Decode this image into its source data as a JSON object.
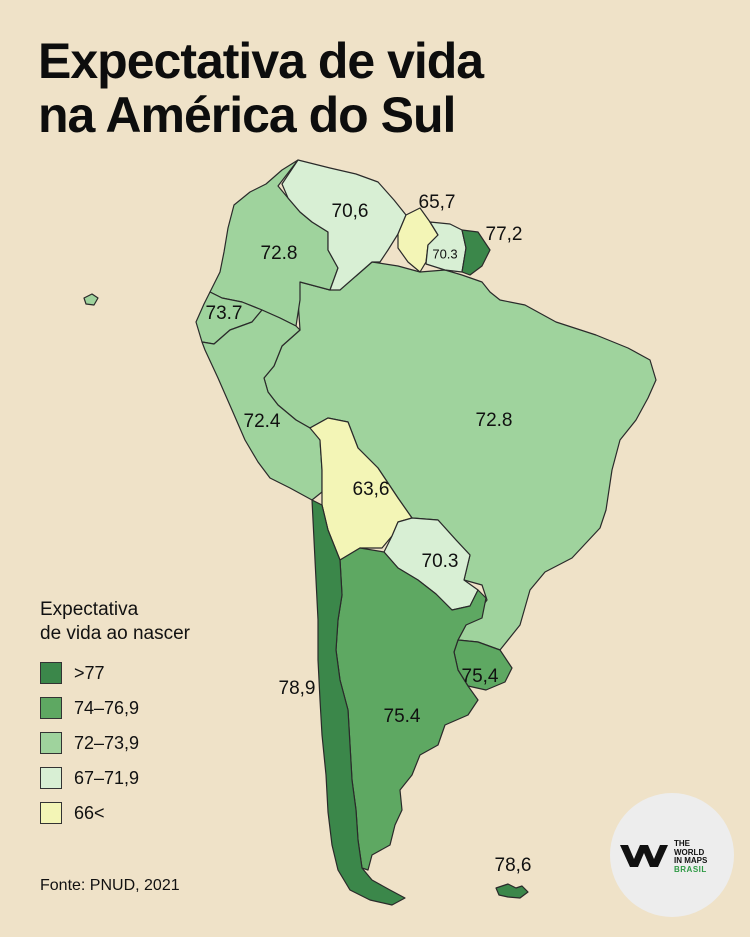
{
  "title": {
    "line1": "Expectativa de vida",
    "line2": "na América do Sul"
  },
  "legend": {
    "title_line1": "Expectativa",
    "title_line2": "de vida ao nascer",
    "items": [
      {
        "label": ">77",
        "color": "#3b874a"
      },
      {
        "label": "74–76,9",
        "color": "#5ea862"
      },
      {
        "label": "72–73,9",
        "color": "#9fd39d"
      },
      {
        "label": "67–71,9",
        "color": "#d8efd4"
      },
      {
        "label": "66<",
        "color": "#f3f5b6"
      }
    ]
  },
  "countries": {
    "venezuela": {
      "value": "70,6",
      "color": "#d8efd4"
    },
    "guyana": {
      "value": "65,7",
      "color": "#f3f5b6"
    },
    "suriname": {
      "value": "70.3",
      "color": "#d8efd4"
    },
    "french_guiana": {
      "value": "77,2",
      "color": "#3b874a"
    },
    "colombia": {
      "value": "72.8",
      "color": "#9fd39d"
    },
    "ecuador": {
      "value": "73.7",
      "color": "#9fd39d"
    },
    "peru": {
      "value": "72.4",
      "color": "#9fd39d"
    },
    "brazil": {
      "value": "72.8",
      "color": "#9fd39d"
    },
    "bolivia": {
      "value": "63,6",
      "color": "#f3f5b6"
    },
    "paraguay": {
      "value": "70.3",
      "color": "#d8efd4"
    },
    "chile": {
      "value": "78,9",
      "color": "#3b874a"
    },
    "argentina": {
      "value": "75.4",
      "color": "#5ea862"
    },
    "uruguay": {
      "value": "75,4",
      "color": "#5ea862"
    },
    "falklands": {
      "value": "78,6",
      "color": "#3b874a"
    }
  },
  "source": "Fonte: PNUD, 2021",
  "logo": {
    "line1": "THE",
    "line2": "WORLD",
    "line3": "IN MAPS",
    "line4": "BRASIL"
  }
}
